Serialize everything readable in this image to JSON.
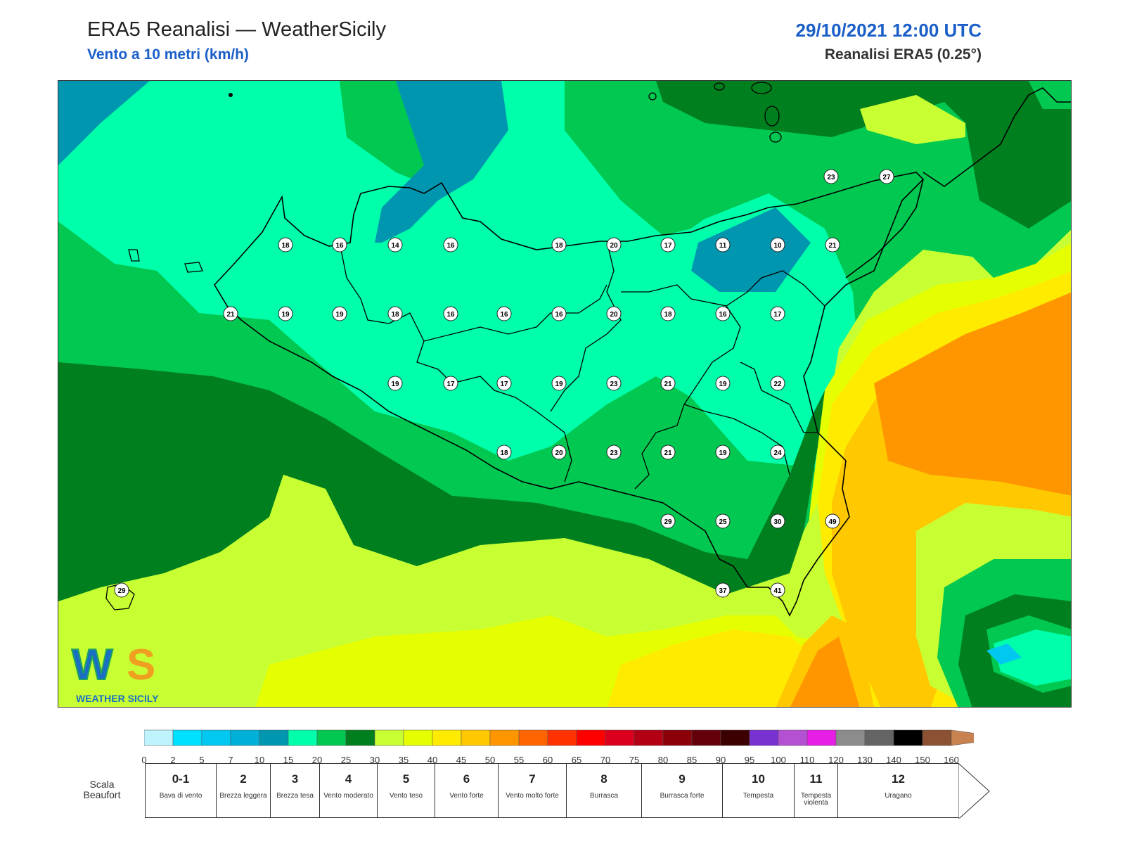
{
  "header": {
    "title": "ERA5 Reanalisi — WeatherSicily",
    "subtitle": "Vento a 10 metri (km/h)",
    "datetime": "29/10/2021 12:00 UTC",
    "source": "Reanalisi ERA5 (0.25°)"
  },
  "colors": {
    "title_blue": "#1a5ec8",
    "coast": "#000000",
    "bg": "#ffffff"
  },
  "map": {
    "region": "Sicily",
    "grid_values": [
      {
        "row": 0,
        "values": [
          23,
          27
        ]
      },
      {
        "row": 1,
        "values": [
          18,
          16,
          14,
          16,
          18,
          20,
          17,
          11,
          10,
          21
        ]
      },
      {
        "row": 2,
        "values": [
          21,
          19,
          19,
          18,
          16,
          16,
          16,
          20,
          18,
          16,
          17
        ]
      },
      {
        "row": 3,
        "values": [
          19,
          17,
          17,
          19,
          23,
          21,
          19,
          22
        ]
      },
      {
        "row": 4,
        "values": [
          18,
          20,
          23,
          21,
          19,
          24
        ]
      },
      {
        "row": 5,
        "values": [
          29,
          25,
          30,
          49
        ]
      },
      {
        "row": 6,
        "values": [
          29,
          37,
          41
        ]
      }
    ]
  },
  "logo": {
    "letters": "WS",
    "text": "WEATHER SICILY"
  },
  "colorbar": {
    "unit": "km/h",
    "ticks": [
      "0",
      "2",
      "5",
      "7",
      "10",
      "15",
      "20",
      "25",
      "30",
      "35",
      "40",
      "45",
      "50",
      "55",
      "60",
      "65",
      "70",
      "75",
      "80",
      "85",
      "90",
      "95",
      "100",
      "110",
      "120",
      "130",
      "140",
      "150",
      "160"
    ],
    "colors": [
      "#bff4ff",
      "#00e0ff",
      "#00c8f0",
      "#00b0d8",
      "#0096b0",
      "#00ffaa",
      "#00c850",
      "#007f1e",
      "#c8ff32",
      "#e6ff00",
      "#ffeb00",
      "#ffc800",
      "#ff9600",
      "#ff6400",
      "#ff3200",
      "#ff0000",
      "#dc001e",
      "#b40014",
      "#8c000a",
      "#64000a",
      "#3c0000",
      "#7832d2",
      "#b450d2",
      "#e61ee6",
      "#8c8c8c",
      "#646464",
      "#000000",
      "#8c5032",
      "#c88250"
    ]
  },
  "beaufort": {
    "caption": "Scala Beaufort",
    "levels": [
      {
        "num": "0-1",
        "desc": "Bava di vento"
      },
      {
        "num": "2",
        "desc": "Brezza leggera"
      },
      {
        "num": "3",
        "desc": "Brezza tesa"
      },
      {
        "num": "4",
        "desc": "Vento moderato"
      },
      {
        "num": "5",
        "desc": "Vento teso"
      },
      {
        "num": "6",
        "desc": "Vento forte"
      },
      {
        "num": "7",
        "desc": "Vento molto forte"
      },
      {
        "num": "8",
        "desc": "Burrasca"
      },
      {
        "num": "9",
        "desc": "Burrasca forte"
      },
      {
        "num": "10",
        "desc": "Tempesta"
      },
      {
        "num": "11",
        "desc": "Tempesta violenta"
      },
      {
        "num": "12",
        "desc": "Uragano"
      }
    ]
  }
}
